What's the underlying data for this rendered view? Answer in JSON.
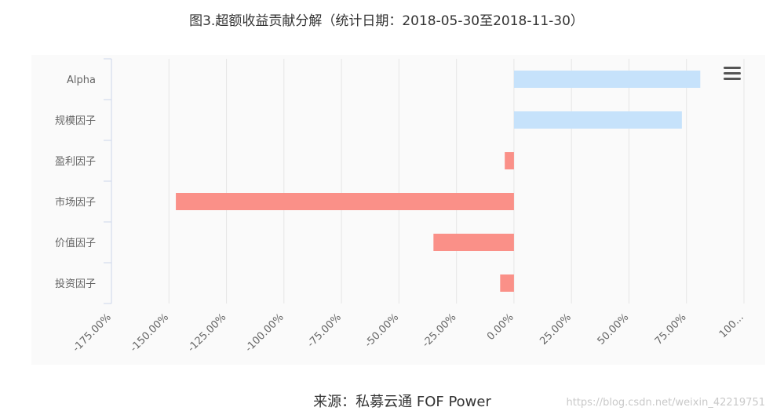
{
  "chart_data": {
    "type": "bar",
    "orientation": "horizontal",
    "title": "图3.超额收益贡献分解（统计日期：2018-05-30至2018-11-30）",
    "categories": [
      "Alpha",
      "规模因子",
      "盈利因子",
      "市场因子",
      "价值因子",
      "投资因子"
    ],
    "values": [
      81.0,
      73.0,
      -4.0,
      -147.0,
      -35.0,
      -6.0
    ],
    "unit": "%",
    "xlim": [
      -175,
      100
    ],
    "x_ticks": [
      -175,
      -150,
      -125,
      -100,
      -75,
      -50,
      -25,
      0,
      25,
      50,
      75,
      100
    ],
    "x_tick_labels": [
      "-175.00%",
      "-150.00%",
      "-125.00%",
      "-100.00%",
      "-75.00%",
      "-50.00%",
      "-25.00%",
      "0.00%",
      "25.00%",
      "50.00%",
      "75.00%",
      "100..."
    ],
    "positive_color": "#c6e2fb",
    "negative_color": "#fa9088",
    "grid": true,
    "source": "来源：私募云通 FOF Power"
  },
  "watermark": "https://blog.csdn.net/weixin_42219751",
  "toolbar": {
    "menu_icon": "hamburger-menu-icon"
  }
}
